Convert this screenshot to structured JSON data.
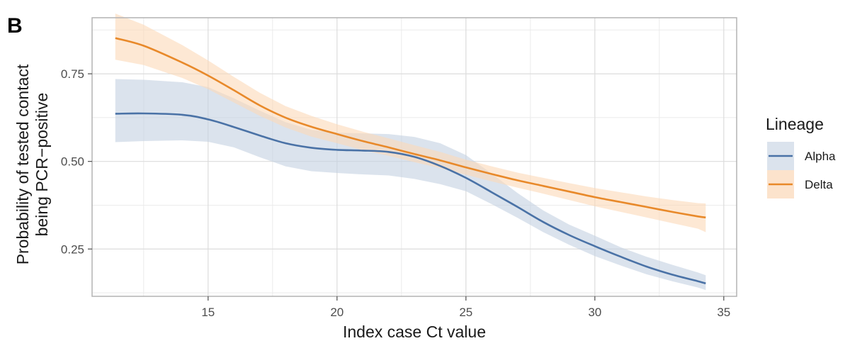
{
  "chart_data": {
    "type": "line",
    "panel_label": "B",
    "xlabel": "Index case Ct value",
    "ylabel_line1": "Probability of tested contact",
    "ylabel_line2": "being PCR−positive",
    "xlim": [
      10.5,
      35.5
    ],
    "ylim": [
      0.115,
      0.91
    ],
    "xticks": [
      15,
      20,
      25,
      30,
      35
    ],
    "yticks": [
      0.25,
      0.5,
      0.75
    ],
    "ytick_labels": [
      "0.25",
      "0.50",
      "0.75"
    ],
    "grid": true,
    "legend": {
      "title": "Lineage",
      "position": "right",
      "items": [
        {
          "label": "Alpha",
          "color": "#4a72a6",
          "fill": "#dbe3ed"
        },
        {
          "label": "Delta",
          "color": "#e8892a",
          "fill": "#fce3cc"
        }
      ]
    },
    "series": [
      {
        "name": "Alpha",
        "color": "#4a72a6",
        "band_color": "#c3d0e1",
        "x": [
          11.4,
          12.5,
          14,
          15,
          16,
          17,
          18,
          19,
          20,
          21,
          22,
          23,
          24,
          25,
          26,
          27,
          28,
          29,
          30,
          31,
          32,
          33,
          34,
          34.3
        ],
        "y": [
          0.636,
          0.637,
          0.633,
          0.62,
          0.598,
          0.574,
          0.552,
          0.539,
          0.533,
          0.531,
          0.527,
          0.513,
          0.487,
          0.453,
          0.412,
          0.37,
          0.327,
          0.29,
          0.258,
          0.228,
          0.2,
          0.177,
          0.158,
          0.152
        ],
        "lower": [
          0.555,
          0.558,
          0.56,
          0.556,
          0.54,
          0.512,
          0.486,
          0.472,
          0.467,
          0.463,
          0.46,
          0.45,
          0.435,
          0.415,
          0.378,
          0.339,
          0.298,
          0.262,
          0.23,
          0.203,
          0.178,
          0.158,
          0.14,
          0.133
        ],
        "upper": [
          0.735,
          0.733,
          0.726,
          0.712,
          0.68,
          0.645,
          0.612,
          0.59,
          0.582,
          0.58,
          0.578,
          0.57,
          0.552,
          0.518,
          0.465,
          0.41,
          0.36,
          0.32,
          0.288,
          0.255,
          0.228,
          0.205,
          0.183,
          0.175
        ]
      },
      {
        "name": "Delta",
        "color": "#e8892a",
        "band_color": "#fbd8b7",
        "x": [
          11.4,
          12.5,
          14,
          15,
          16,
          17,
          18,
          19,
          20,
          21,
          22,
          23,
          24,
          25,
          26,
          27,
          28,
          29,
          30,
          31,
          32,
          33,
          34,
          34.3
        ],
        "y": [
          0.852,
          0.83,
          0.782,
          0.745,
          0.703,
          0.66,
          0.625,
          0.599,
          0.578,
          0.558,
          0.54,
          0.521,
          0.503,
          0.483,
          0.464,
          0.446,
          0.43,
          0.414,
          0.398,
          0.384,
          0.37,
          0.356,
          0.343,
          0.34
        ],
        "lower": [
          0.79,
          0.775,
          0.738,
          0.706,
          0.668,
          0.63,
          0.597,
          0.571,
          0.552,
          0.532,
          0.516,
          0.498,
          0.481,
          0.462,
          0.443,
          0.425,
          0.408,
          0.39,
          0.372,
          0.356,
          0.34,
          0.324,
          0.308,
          0.298
        ],
        "upper": [
          0.922,
          0.89,
          0.832,
          0.788,
          0.741,
          0.696,
          0.658,
          0.63,
          0.606,
          0.585,
          0.566,
          0.546,
          0.527,
          0.505,
          0.486,
          0.468,
          0.453,
          0.438,
          0.424,
          0.412,
          0.4,
          0.39,
          0.381,
          0.38
        ]
      }
    ]
  }
}
